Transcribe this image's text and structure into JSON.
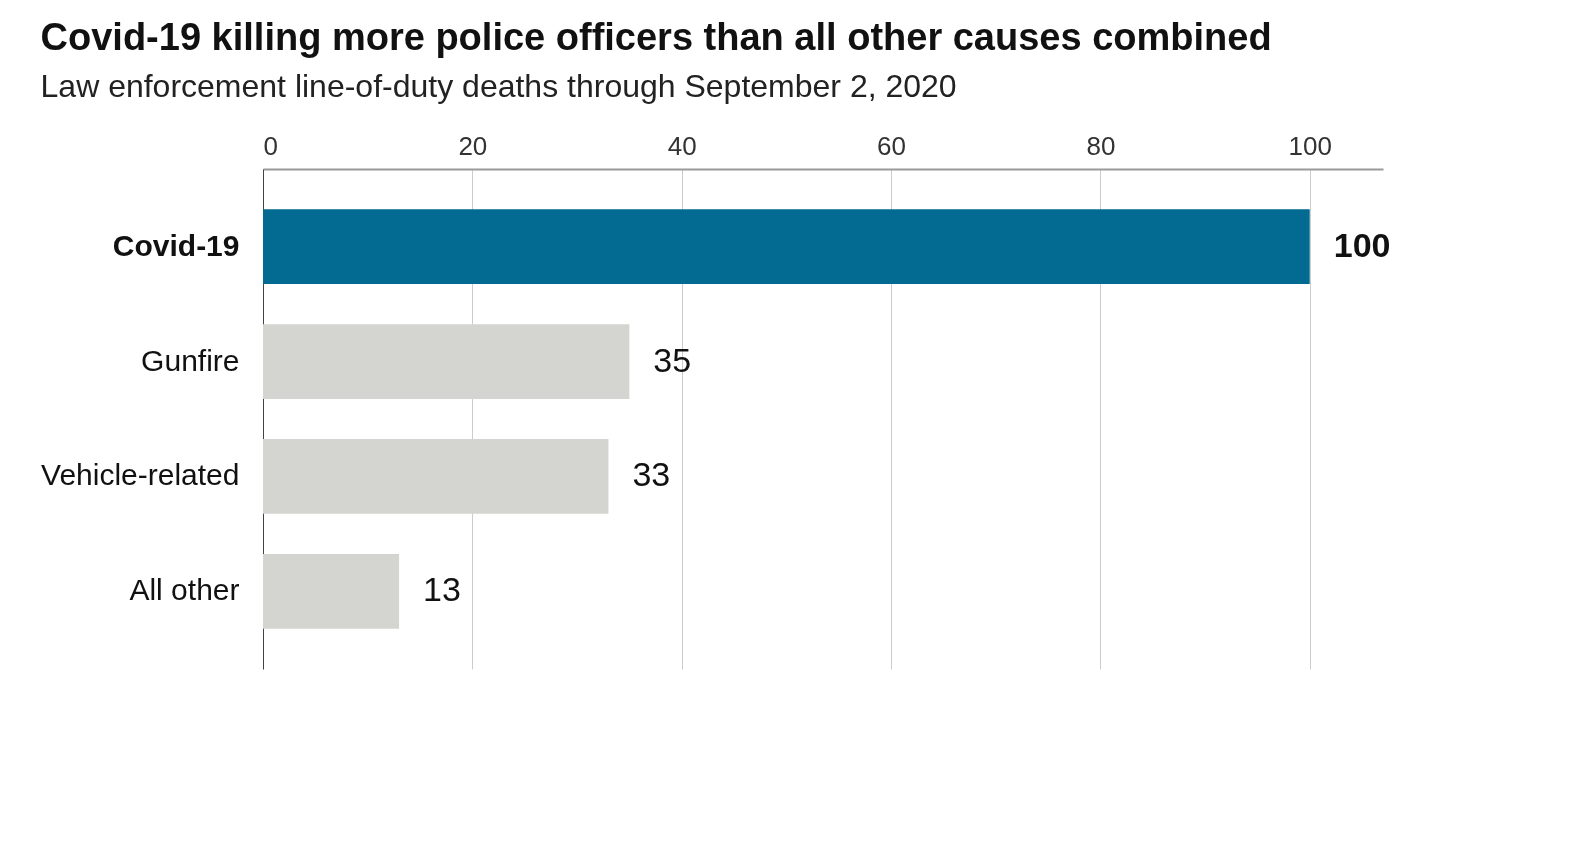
{
  "chart_data": {
    "type": "bar",
    "orientation": "horizontal",
    "title": "Covid-19 killing more police officers than all other causes combined",
    "subtitle": "Law enforcement line-of-duty deaths through September 2, 2020",
    "categories": [
      "Covid-19",
      "Gunfire",
      "Vehicle-related",
      "All other"
    ],
    "values": [
      100,
      35,
      33,
      13
    ],
    "colors": [
      "#036a91",
      "#d4d4d0",
      "#d4d4d0",
      "#d4d4d0"
    ],
    "xlim": [
      0,
      107
    ],
    "xticks": [
      0,
      20,
      40,
      60,
      80,
      100
    ],
    "grid": "x",
    "data_labels": true
  }
}
